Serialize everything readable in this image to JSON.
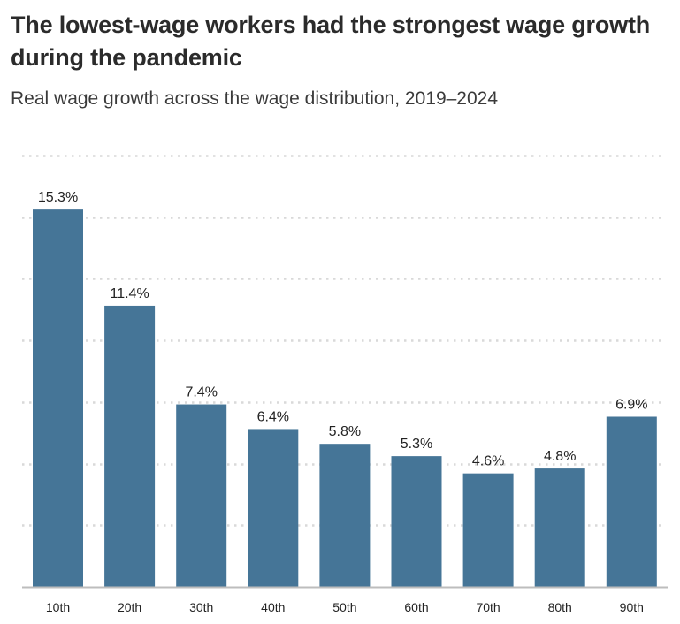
{
  "header": {
    "title": "The lowest-wage workers had the strongest wage growth during the pandemic",
    "subtitle": "Real wage growth across the wage distribution, 2019–2024"
  },
  "colors": {
    "bar": "#457597",
    "grid": "#d9d9d9",
    "axis": "#bdbdbd",
    "text": "#222222"
  },
  "chart_data": {
    "type": "bar",
    "title": "The lowest-wage workers had the strongest wage growth during the pandemic",
    "subtitle": "Real wage growth across the wage distribution, 2019–2024",
    "xlabel": "",
    "ylabel": "",
    "categories": [
      "10th",
      "20th",
      "30th",
      "40th",
      "50th",
      "60th",
      "70th",
      "80th",
      "90th"
    ],
    "values": [
      15.3,
      11.4,
      7.4,
      6.4,
      5.8,
      5.3,
      4.6,
      4.8,
      6.9
    ],
    "value_labels": [
      "15.3%",
      "11.4%",
      "7.4%",
      "6.4%",
      "5.8%",
      "5.3%",
      "4.6%",
      "4.8%",
      "6.9%"
    ],
    "ylim": [
      0,
      17.5
    ],
    "grid_values": [
      2.5,
      5,
      7.5,
      10,
      12.5,
      15,
      17.5
    ],
    "grid": true,
    "legend": "none"
  }
}
